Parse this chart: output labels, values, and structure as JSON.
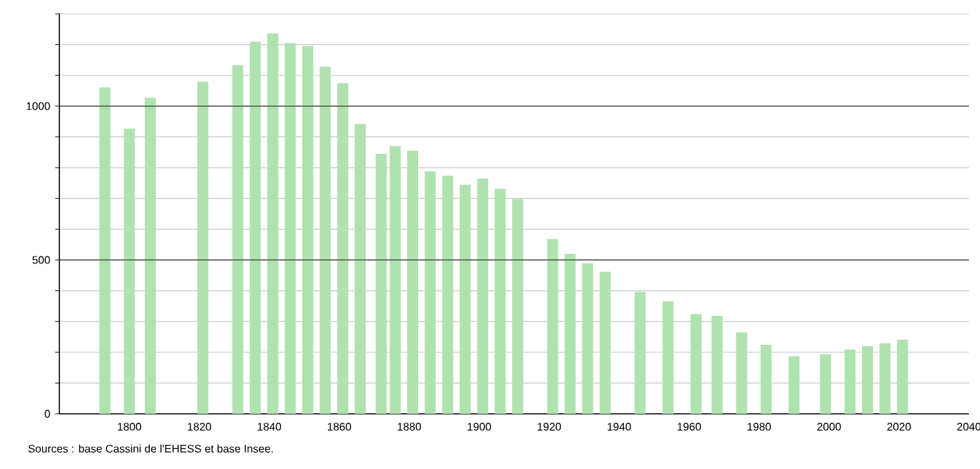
{
  "chart_data": {
    "type": "bar",
    "x": [
      1793,
      1800,
      1806,
      1821,
      1831,
      1836,
      1841,
      1846,
      1851,
      1856,
      1861,
      1866,
      1872,
      1876,
      1881,
      1886,
      1891,
      1896,
      1901,
      1906,
      1911,
      1921,
      1926,
      1931,
      1936,
      1946,
      1954,
      1962,
      1968,
      1975,
      1982,
      1990,
      1999,
      2006,
      2011,
      2016,
      2021
    ],
    "values": [
      1061,
      927,
      1027,
      1079,
      1133,
      1209,
      1236,
      1205,
      1196,
      1128,
      1075,
      942,
      845,
      870,
      855,
      788,
      774,
      744,
      765,
      731,
      698,
      568,
      520,
      489,
      462,
      396,
      366,
      324,
      318,
      265,
      224,
      187,
      194,
      209,
      220,
      229,
      241
    ],
    "color": "#b0e2b0",
    "xlim": [
      1780,
      2040
    ],
    "xticks": [
      1800,
      1820,
      1840,
      1860,
      1880,
      1900,
      1920,
      1940,
      1960,
      1980,
      2000,
      2020,
      2040
    ],
    "ylim": [
      0,
      1300
    ],
    "yticks": [
      0,
      {
        "value": 100,
        "label": null
      },
      {
        "value": 200,
        "label": null
      },
      {
        "value": 300,
        "label": null
      },
      {
        "value": 400,
        "label": null
      },
      500,
      {
        "value": 600,
        "label": null
      },
      {
        "value": 700,
        "label": null
      },
      {
        "value": 800,
        "label": null
      },
      {
        "value": 900,
        "label": null
      },
      1000,
      {
        "value": 1100,
        "label": null
      },
      {
        "value": 1200,
        "label": null
      },
      {
        "value": 1300,
        "label": null
      }
    ],
    "grid": "y",
    "annotations": [
      "Sources : base Cassini de l'EHESS et base Insee."
    ]
  }
}
